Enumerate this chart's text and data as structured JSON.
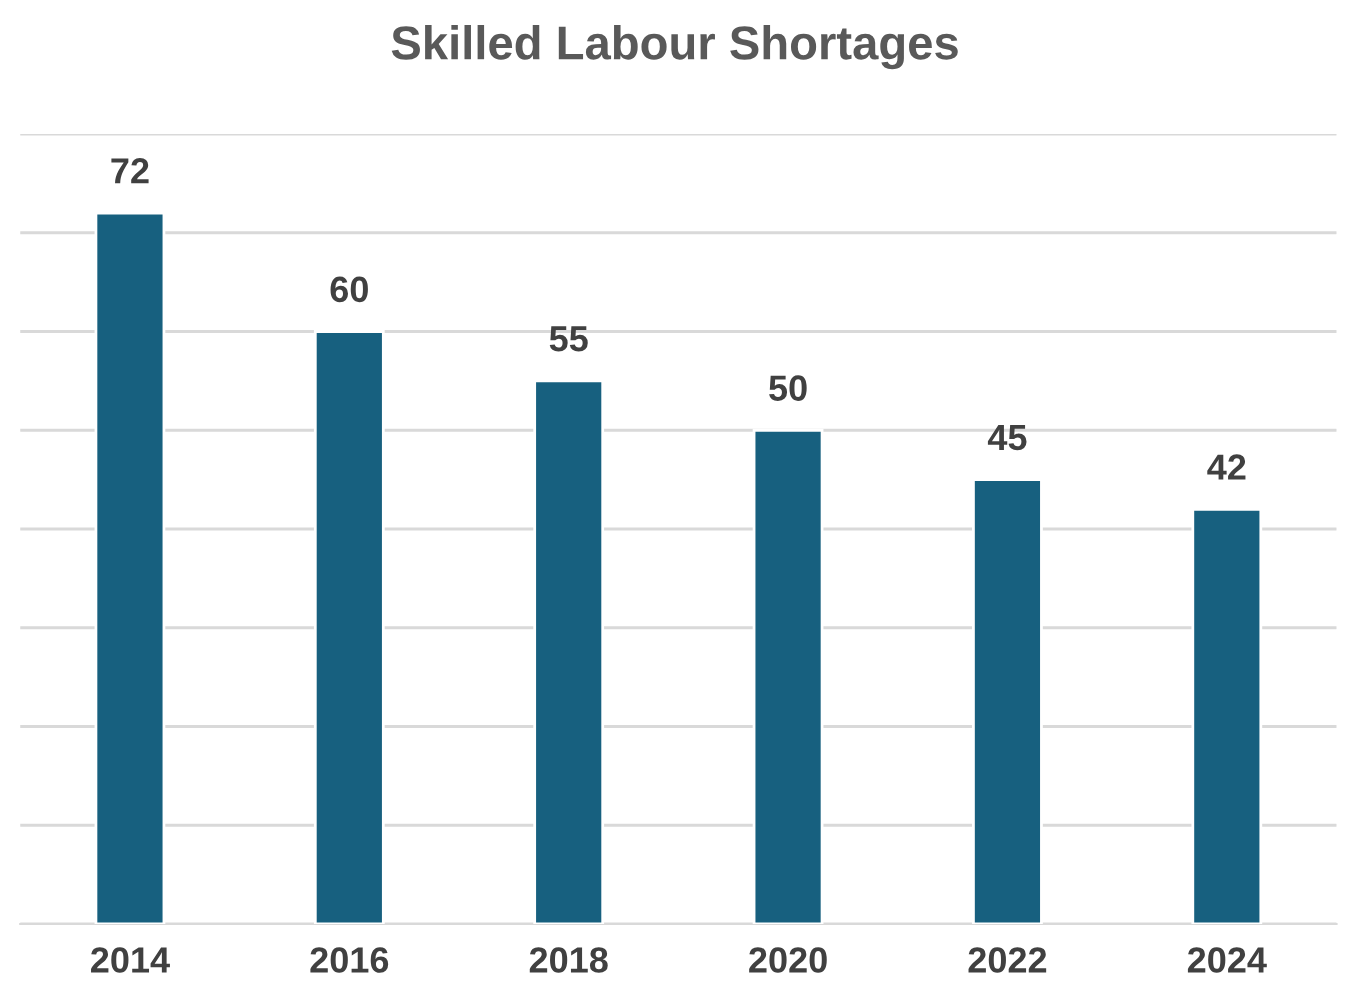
{
  "chart_data": {
    "type": "bar",
    "title": "Skilled Labour Shortages",
    "categories": [
      "2014",
      "2016",
      "2018",
      "2020",
      "2022",
      "2024"
    ],
    "values": [
      72,
      60,
      55,
      50,
      45,
      42
    ],
    "color": "#17607f",
    "ylim": [
      0,
      80
    ],
    "yticks": [
      {
        "value": 0,
        "label": null
      },
      {
        "value": 10,
        "label": null
      },
      {
        "value": 20,
        "label": null
      },
      {
        "value": 30,
        "label": null
      },
      {
        "value": 40,
        "label": null
      },
      {
        "value": 50,
        "label": null
      },
      {
        "value": 60,
        "label": null
      },
      {
        "value": 70,
        "label": null
      },
      {
        "value": 80,
        "label": null
      }
    ],
    "tick_labels": "x",
    "grid": "y",
    "data_labels": true
  }
}
